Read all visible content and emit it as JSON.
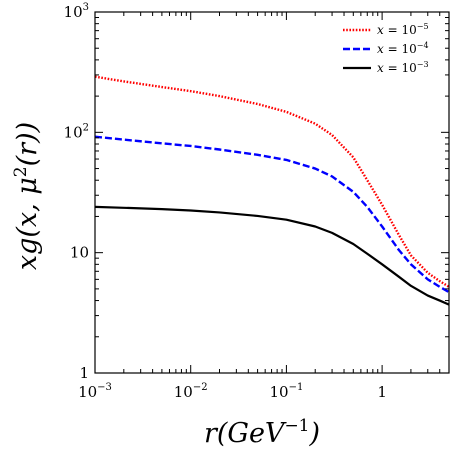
{
  "chart_data": {
    "type": "line",
    "xlabel": "r(GeV^{-1})",
    "ylabel": "xg(x, μ^2(r))",
    "xscale": "log",
    "yscale": "log",
    "xlim": [
      0.001,
      5
    ],
    "ylim": [
      1,
      1000
    ],
    "grid": false,
    "legend_position": "top-right",
    "x_ticks": [
      {
        "value": 0.001,
        "base": "10",
        "exp": "−3"
      },
      {
        "value": 0.01,
        "base": "10",
        "exp": "−2"
      },
      {
        "value": 0.1,
        "base": "10",
        "exp": "−1"
      },
      {
        "value": 1,
        "base": "1",
        "exp": ""
      }
    ],
    "y_ticks": [
      {
        "value": 1,
        "base": "1",
        "exp": ""
      },
      {
        "value": 10,
        "base": "10",
        "exp": ""
      },
      {
        "value": 100,
        "base": "10",
        "exp": "2"
      },
      {
        "value": 1000,
        "base": "10",
        "exp": "3"
      }
    ],
    "series": [
      {
        "name": "x = 10^{-5}",
        "legend": {
          "var": "x",
          "eq": " = 10",
          "exp": "−5"
        },
        "color": "#ff0000",
        "style": "dotted",
        "x": [
          0.001,
          0.002,
          0.005,
          0.01,
          0.02,
          0.05,
          0.1,
          0.2,
          0.3,
          0.5,
          0.7,
          1,
          1.5,
          2,
          3,
          4,
          5
        ],
        "y": [
          290,
          265,
          238,
          220,
          200,
          172,
          148,
          118,
          95,
          62,
          40,
          25,
          14,
          9.5,
          6.8,
          5.8,
          5.2
        ]
      },
      {
        "name": "x = 10^{-4}",
        "legend": {
          "var": "x",
          "eq": " = 10",
          "exp": "−4"
        },
        "color": "#0000ff",
        "style": "dashed",
        "x": [
          0.001,
          0.002,
          0.005,
          0.01,
          0.02,
          0.05,
          0.1,
          0.2,
          0.3,
          0.5,
          0.7,
          1,
          1.5,
          2,
          3,
          4,
          5
        ],
        "y": [
          92,
          87,
          81,
          77,
          72,
          65,
          59,
          50,
          43,
          32,
          24,
          16.5,
          10.5,
          8,
          6,
          5.2,
          4.7
        ]
      },
      {
        "name": "x = 10^{-3}",
        "legend": {
          "var": "x",
          "eq": " = 10",
          "exp": "−3"
        },
        "color": "#000000",
        "style": "solid",
        "x": [
          0.001,
          0.002,
          0.005,
          0.01,
          0.02,
          0.05,
          0.1,
          0.2,
          0.3,
          0.5,
          0.7,
          1,
          1.5,
          2,
          3,
          4,
          5
        ],
        "y": [
          24,
          23.6,
          23,
          22.4,
          21.6,
          20.2,
          18.8,
          16.5,
          14.6,
          11.8,
          9.8,
          8,
          6.3,
          5.3,
          4.4,
          4,
          3.7
        ]
      }
    ]
  }
}
